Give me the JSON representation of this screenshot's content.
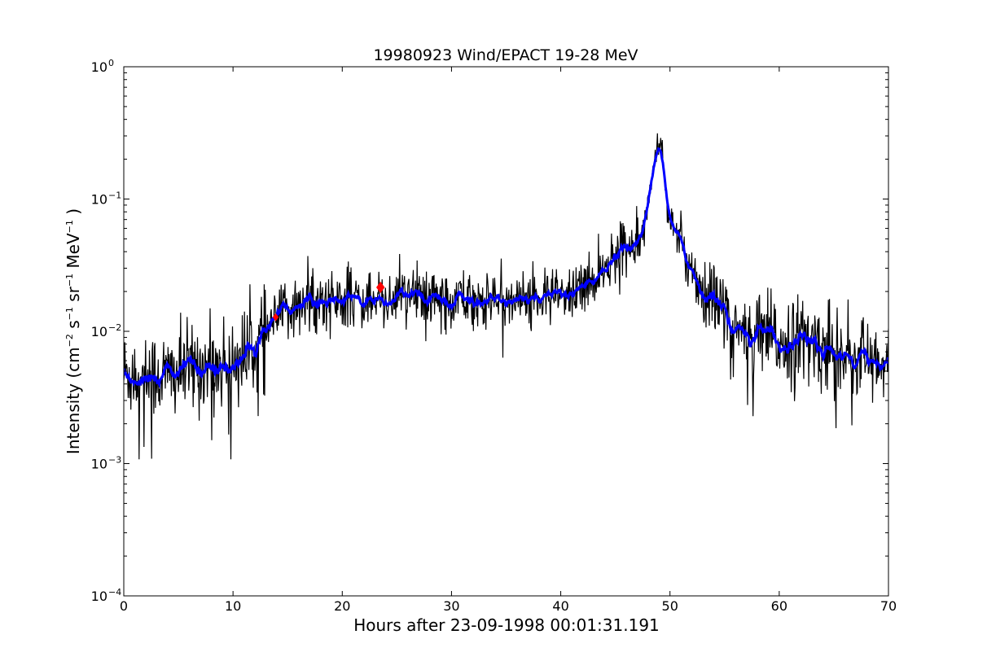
{
  "chart_data": {
    "type": "line",
    "title": "19980923 Wind/EPACT 19-28 MeV",
    "xlabel": "Hours after 23-09-1998 00:01:31.191",
    "ylabel": {
      "prefix": "Intensity (cm",
      "exp1": "−2",
      "part2": " s",
      "exp2": "−1",
      "part3": " sr",
      "exp3": "−1",
      "part4": " MeV",
      "exp4": "−1",
      "suffix": " )"
    },
    "xlim": [
      0,
      70
    ],
    "ylim": [
      0.0001,
      1
    ],
    "yscale": "log",
    "grid": false,
    "x_ticks": [
      0,
      10,
      20,
      30,
      40,
      50,
      60,
      70
    ],
    "x_tick_labels": [
      "0",
      "10",
      "20",
      "30",
      "40",
      "50",
      "60",
      "70"
    ],
    "y_ticks": [
      0.0001,
      0.001,
      0.01,
      0.1,
      1
    ],
    "y_tick_labels": [
      {
        "base": "10",
        "exp": "−4"
      },
      {
        "base": "10",
        "exp": "−3"
      },
      {
        "base": "10",
        "exp": "−2"
      },
      {
        "base": "10",
        "exp": "−1"
      },
      {
        "base": "10",
        "exp": "0"
      }
    ],
    "series": [
      {
        "role": "raw",
        "color": "#000000",
        "profile_x": [
          0,
          2,
          4,
          5.5,
          7,
          9,
          10,
          11,
          12,
          13,
          14,
          15,
          16,
          18,
          20,
          22,
          24,
          27,
          30,
          33,
          36,
          39,
          41,
          42,
          43,
          44,
          45,
          46,
          47,
          47.5,
          48,
          48.5,
          49,
          49.3,
          49.6,
          50,
          50.5,
          51,
          52,
          53,
          54,
          55,
          56,
          58,
          60,
          63,
          66,
          68,
          70
        ],
        "profile_y": [
          0.0048,
          0.0047,
          0.0046,
          0.005,
          0.0055,
          0.0055,
          0.006,
          0.0065,
          0.0075,
          0.0095,
          0.0125,
          0.0145,
          0.016,
          0.017,
          0.017,
          0.0175,
          0.018,
          0.018,
          0.018,
          0.0175,
          0.0175,
          0.018,
          0.019,
          0.021,
          0.025,
          0.03,
          0.037,
          0.044,
          0.052,
          0.06,
          0.1,
          0.18,
          0.25,
          0.24,
          0.12,
          0.068,
          0.055,
          0.045,
          0.03,
          0.021,
          0.016,
          0.013,
          0.01,
          0.009,
          0.0085,
          0.008,
          0.007,
          0.006,
          0.0048
        ]
      },
      {
        "role": "smoothed",
        "color": "#0000ff"
      }
    ],
    "markers": [
      {
        "x": 13.9,
        "y": 0.0128,
        "shape": "diamond",
        "color": "#ff0000",
        "size": 5
      },
      {
        "x": 23.5,
        "y": 0.0215,
        "shape": "diamond",
        "color": "#ff0000",
        "size": 7
      }
    ]
  }
}
